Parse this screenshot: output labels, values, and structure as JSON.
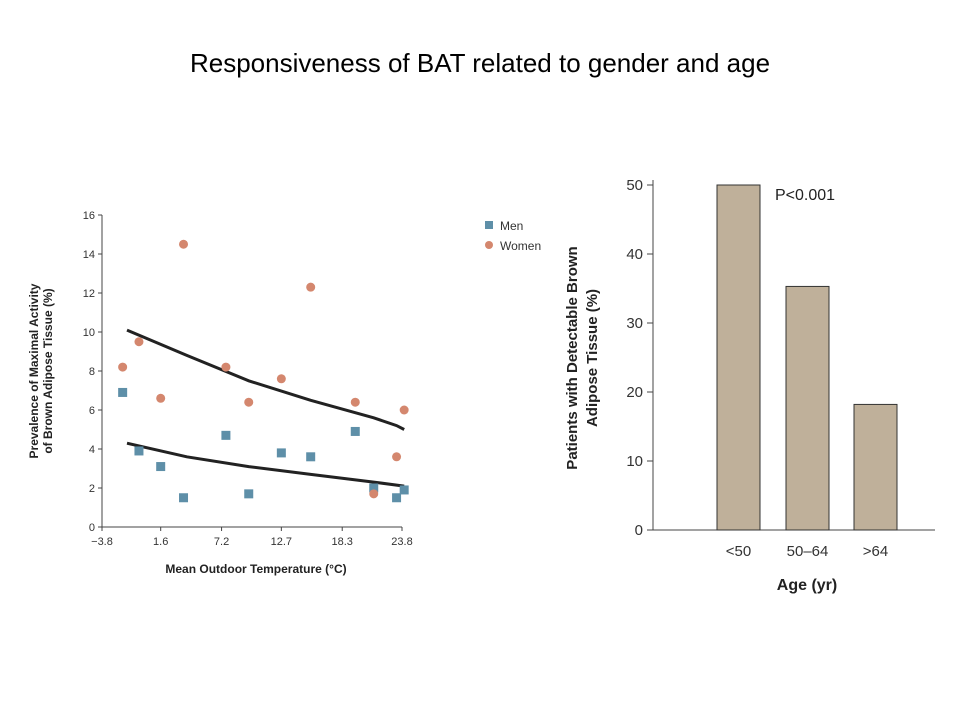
{
  "slide": {
    "title": "Responsiveness of BAT related to gender and age"
  },
  "chart_data": [
    {
      "type": "scatter",
      "xlabel": "Mean Outdoor Temperature (°C)",
      "ylabel": [
        "Prevalence of Maximal Activity",
        "of Brown Adipose Tissue (%)"
      ],
      "xticks": [
        "−3.8",
        "1.6",
        "7.2",
        "12.7",
        "18.3",
        "23.8"
      ],
      "xtick_values": [
        -3.8,
        1.6,
        7.2,
        12.7,
        18.3,
        23.8
      ],
      "yticks": [
        "0",
        "2",
        "4",
        "6",
        "8",
        "10",
        "12",
        "14",
        "16"
      ],
      "xlim": [
        -3.8,
        23.8
      ],
      "ylim": [
        0,
        16
      ],
      "legend_position": "top-right",
      "series": [
        {
          "name": "Men",
          "marker": "square",
          "color": "#5e8fa8",
          "points": [
            [
              -1.9,
              6.9
            ],
            [
              -0.4,
              3.9
            ],
            [
              1.6,
              3.1
            ],
            [
              3.7,
              1.5
            ],
            [
              7.6,
              4.7
            ],
            [
              9.7,
              1.7
            ],
            [
              12.7,
              3.8
            ],
            [
              15.4,
              3.6
            ],
            [
              19.5,
              4.9
            ],
            [
              21.2,
              2.0
            ],
            [
              23.3,
              1.5
            ],
            [
              24.0,
              1.9
            ]
          ],
          "trend": [
            [
              -1.5,
              4.3
            ],
            [
              4.0,
              3.6
            ],
            [
              9.7,
              3.1
            ],
            [
              15.4,
              2.7
            ],
            [
              21.2,
              2.3
            ],
            [
              24.0,
              2.1
            ]
          ]
        },
        {
          "name": "Women",
          "marker": "circle",
          "color": "#d4876e",
          "points": [
            [
              -1.9,
              8.2
            ],
            [
              -0.4,
              9.5
            ],
            [
              1.6,
              6.6
            ],
            [
              3.7,
              14.5
            ],
            [
              7.6,
              8.2
            ],
            [
              9.7,
              6.4
            ],
            [
              12.7,
              7.6
            ],
            [
              15.4,
              12.3
            ],
            [
              19.5,
              6.4
            ],
            [
              21.2,
              1.7
            ],
            [
              23.3,
              3.6
            ],
            [
              24.0,
              6.0
            ]
          ],
          "trend": [
            [
              -1.5,
              10.1
            ],
            [
              4.0,
              8.8
            ],
            [
              9.7,
              7.5
            ],
            [
              15.4,
              6.5
            ],
            [
              21.2,
              5.6
            ],
            [
              23.3,
              5.2
            ],
            [
              24.0,
              5.0
            ]
          ]
        }
      ]
    },
    {
      "type": "bar",
      "categories": [
        "<50",
        "50–64",
        ">64"
      ],
      "values": [
        50,
        35.3,
        18.2
      ],
      "color": "#bfb09a",
      "ylabel": [
        "Patients with Detectable Brown",
        "Adipose Tissue (%)"
      ],
      "xlabel": "Age (yr)",
      "yticks": [
        "0",
        "10",
        "20",
        "30",
        "40",
        "50"
      ],
      "ylim": [
        0,
        50
      ],
      "annotation": "P<0.001"
    }
  ]
}
